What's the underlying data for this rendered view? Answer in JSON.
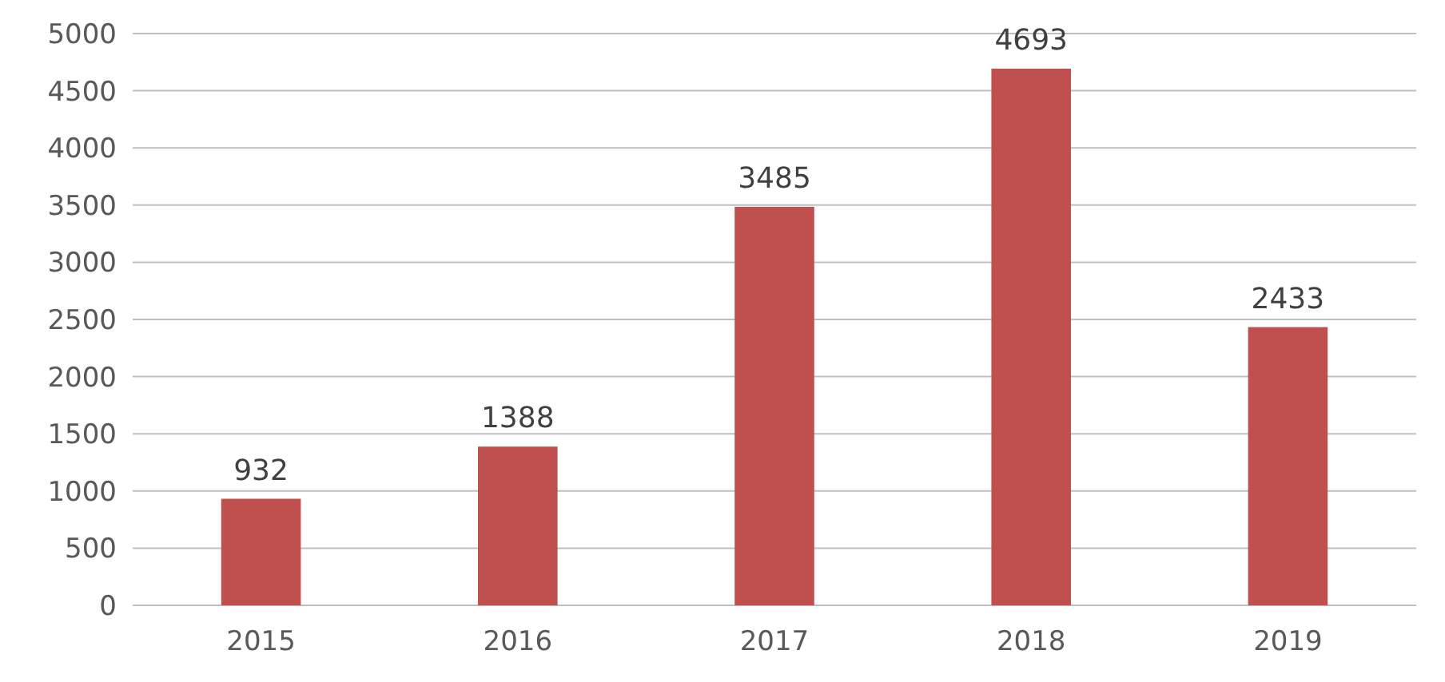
{
  "chart_data": {
    "type": "bar",
    "categories": [
      "2015",
      "2016",
      "2017",
      "2018",
      "2019"
    ],
    "values": [
      932,
      1388,
      3485,
      4693,
      2433
    ],
    "color": "#c0504d",
    "ylim": [
      0,
      5000
    ],
    "yticks": [
      0,
      500,
      1000,
      1500,
      2000,
      2500,
      3000,
      3500,
      4000,
      4500,
      5000
    ],
    "grid": "y",
    "data_labels": true
  }
}
